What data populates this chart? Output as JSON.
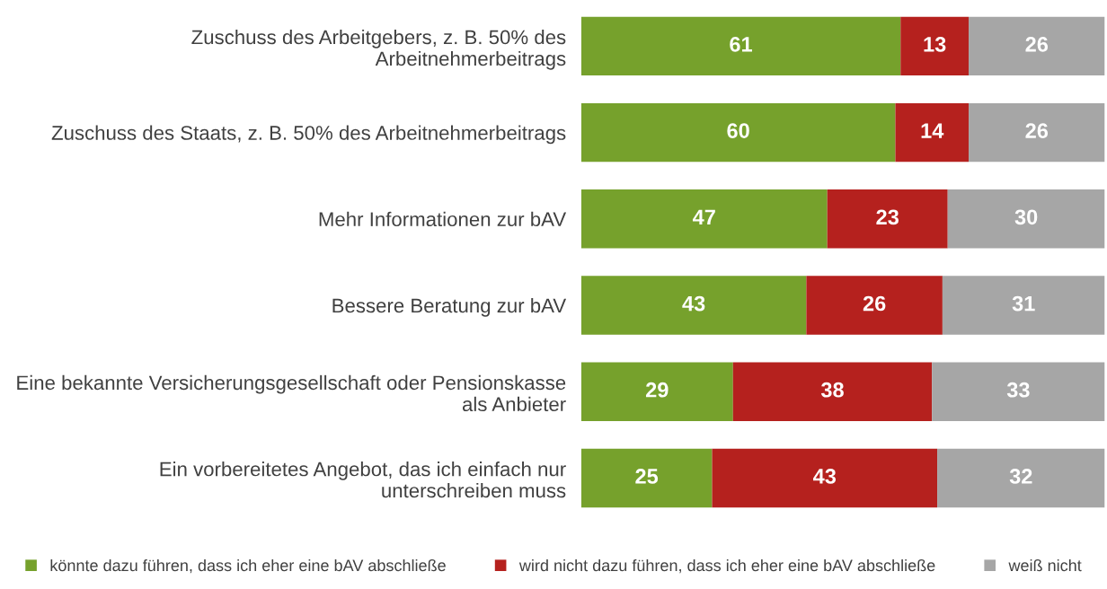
{
  "chart_data": {
    "type": "bar",
    "orientation": "horizontal",
    "stacked": true,
    "data_labels": true,
    "legend": "bottom",
    "grid": false,
    "categories": [
      "Zuschuss des Arbeitgebers, z. B. 50% des\nArbeitnehmerbeitrags",
      "Zuschuss des Staats, z. B. 50% des Arbeitnehmerbeitrags",
      "Mehr Informationen zur bAV",
      "Bessere Beratung zur bAV",
      "Eine bekannte Versicherungsgesellschaft oder Pensionskasse\nals Anbieter",
      "Ein vorbereitetes Angebot, das ich einfach nur\nunterschreiben muss"
    ],
    "series": [
      {
        "name": "könnte dazu führen, dass ich eher eine bAV abschließe",
        "color": "#76a12c",
        "values": [
          61,
          60,
          47,
          43,
          29,
          25
        ]
      },
      {
        "name": "wird nicht dazu führen, dass ich eher eine bAV abschließe",
        "color": "#b5211e",
        "values": [
          13,
          14,
          23,
          26,
          38,
          43
        ]
      },
      {
        "name": "weiß nicht",
        "color": "#a6a6a6",
        "values": [
          26,
          26,
          30,
          31,
          33,
          32
        ]
      }
    ]
  }
}
